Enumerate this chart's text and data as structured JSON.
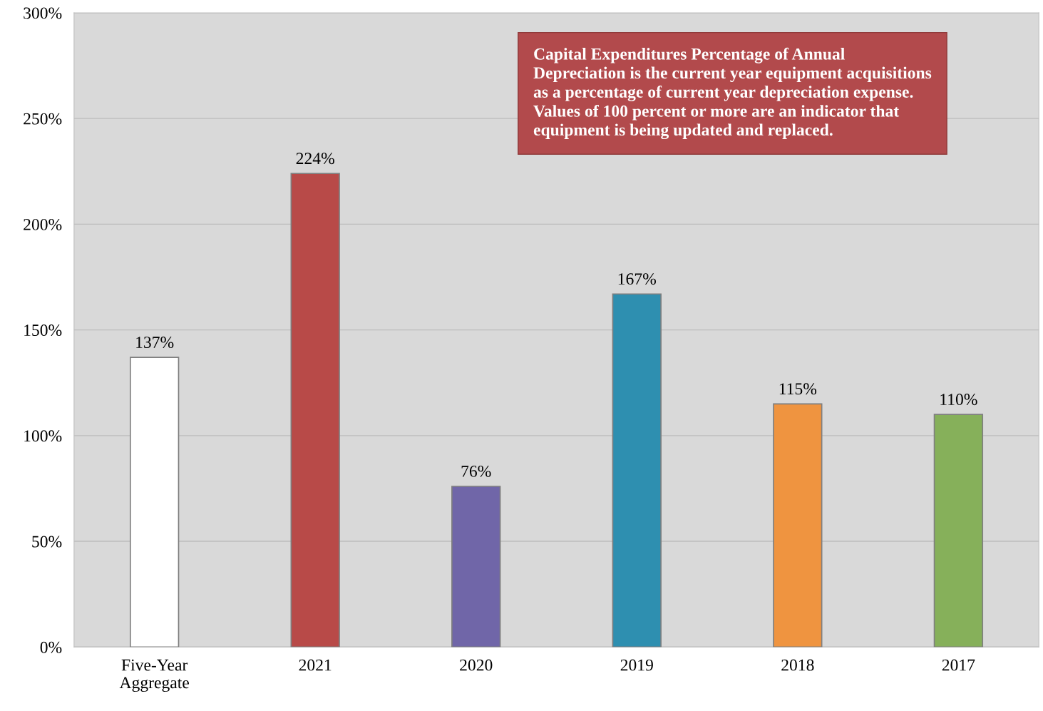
{
  "chart_data": {
    "type": "bar",
    "categories": [
      "Five-Year\nAggregate",
      "2021",
      "2020",
      "2019",
      "2018",
      "2017"
    ],
    "values": [
      137,
      224,
      76,
      167,
      115,
      110
    ],
    "colors": [
      "#ffffff",
      "#b84a48",
      "#7066a8",
      "#2e8fb0",
      "#ef9440",
      "#86b05a"
    ],
    "value_labels": [
      "137%",
      "224%",
      "76%",
      "167%",
      "115%",
      "110%"
    ],
    "ylim": [
      0,
      300
    ],
    "yticks": [
      {
        "value": 0,
        "label": "0%"
      },
      {
        "value": 50,
        "label": "50%"
      },
      {
        "value": 100,
        "label": "100%"
      },
      {
        "value": 150,
        "label": "150%"
      },
      {
        "value": 200,
        "label": "200%"
      },
      {
        "value": 250,
        "label": "250%"
      },
      {
        "value": 300,
        "label": "300%"
      }
    ],
    "grid": "y",
    "annotations": [
      "Capital Expenditures Percentage of Annual\nDepreciation is the current year equipment acquisitions\nas a percentage of current year depreciation expense.\nValues of 100 percent or more are an indicator that\nequipment is being updated and replaced."
    ]
  }
}
